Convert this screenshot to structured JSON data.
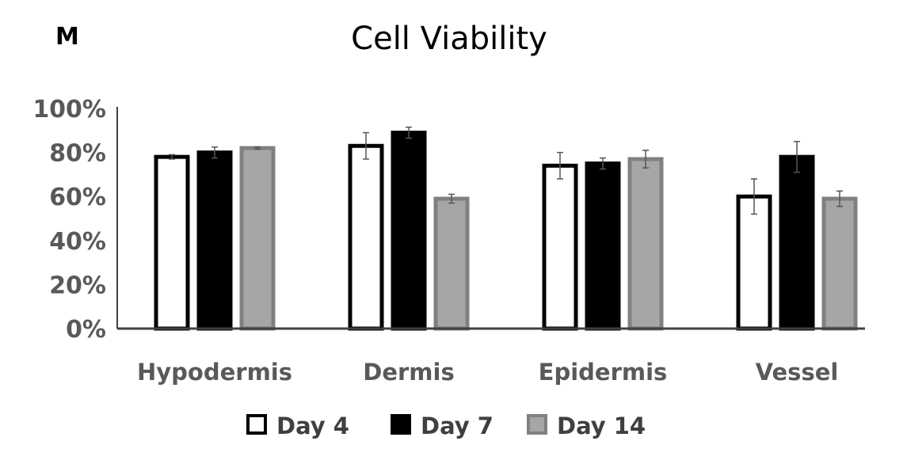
{
  "panel_label": "M",
  "chart_data": {
    "type": "bar",
    "title": "Cell Viability",
    "xlabel": "",
    "ylabel": "",
    "categories": [
      "Hypodermis",
      "Dermis",
      "Epidermis",
      "Vessel"
    ],
    "ylim": [
      0,
      100
    ],
    "yticks": [
      "0%",
      "20%",
      "40%",
      "60%",
      "80%",
      "100%"
    ],
    "grid": false,
    "legend_position": "bottom",
    "series": [
      {
        "name": "Day 4",
        "values": [
          78,
          83,
          74,
          60
        ],
        "errors": [
          1,
          6,
          6,
          8
        ],
        "fill": "#ffffff",
        "stroke": "#000000"
      },
      {
        "name": "Day 7",
        "values": [
          80,
          89,
          75,
          78
        ],
        "errors": [
          2.5,
          2.5,
          2.5,
          7
        ],
        "fill": "#000000",
        "stroke": "#000000"
      },
      {
        "name": "Day 14",
        "values": [
          82,
          59,
          77,
          59
        ],
        "errors": [
          0.5,
          2,
          4,
          3.5
        ],
        "fill": "#a6a6a6",
        "stroke": "#808080"
      }
    ]
  }
}
